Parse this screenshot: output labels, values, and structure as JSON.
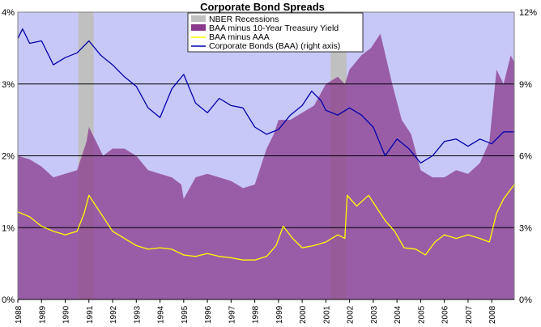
{
  "chart_data": {
    "type": "area",
    "title": "Corporate Bond Spreads",
    "y_left": {
      "ticks": [
        "0%",
        "1%",
        "2%",
        "3%",
        "4%"
      ],
      "range": [
        0,
        4
      ]
    },
    "y_right": {
      "ticks": [
        "0%",
        "3%",
        "6%",
        "9%",
        "12%"
      ],
      "range": [
        0,
        12
      ]
    },
    "x_range": [
      1988,
      2008.95
    ],
    "x_ticks": [
      "1988",
      "1989",
      "1990",
      "1991",
      "1992",
      "1993",
      "1994",
      "1995",
      "1996",
      "1997",
      "1998",
      "1999",
      "2000",
      "2001",
      "2002",
      "2003",
      "2004",
      "2005",
      "2006",
      "2007",
      "2008"
    ],
    "grid": "horizontal",
    "legend_position": "top",
    "colors": {
      "plot_bg": "#c8c8f8",
      "recession": "#c0c0c0",
      "spread_area": "#8a3a8c",
      "baa_aaa": "#ffff00",
      "baa_yield": "#0000aa"
    },
    "legend": [
      "NBER Recessions",
      "BAA minus 10-Year Treasury Yield",
      "BAA minus AAA",
      "Corporate Bonds (BAA) (right axis)"
    ],
    "recessions": [
      [
        1990.55,
        1991.2
      ],
      [
        2001.2,
        2001.87
      ]
    ],
    "series": [
      {
        "name": "BAA minus 10-Year Treasury Yield",
        "axis": "left",
        "x": [
          1988.0,
          1988.5,
          1989.0,
          1989.5,
          1990.0,
          1990.5,
          1990.9,
          1991.0,
          1991.3,
          1991.6,
          1992.0,
          1992.5,
          1993.0,
          1993.5,
          1994.0,
          1994.5,
          1994.9,
          1995.0,
          1995.5,
          1996.0,
          1996.5,
          1997.0,
          1997.5,
          1998.0,
          1998.5,
          1998.8,
          1999.0,
          1999.5,
          2000.0,
          2000.5,
          2001.0,
          2001.5,
          2001.8,
          2002.0,
          2002.5,
          2002.9,
          2003.3,
          2003.8,
          2004.2,
          2004.6,
          2005.0,
          2005.5,
          2006.0,
          2006.5,
          2007.0,
          2007.5,
          2007.9,
          2008.2,
          2008.5,
          2008.8,
          2008.95
        ],
        "y": [
          2.0,
          1.95,
          1.85,
          1.7,
          1.75,
          1.8,
          2.2,
          2.4,
          2.2,
          2.0,
          2.1,
          2.1,
          2.0,
          1.8,
          1.75,
          1.7,
          1.6,
          1.4,
          1.7,
          1.75,
          1.7,
          1.65,
          1.55,
          1.6,
          2.1,
          2.3,
          2.5,
          2.5,
          2.6,
          2.7,
          3.0,
          3.1,
          3.0,
          3.2,
          3.4,
          3.5,
          3.7,
          3.0,
          2.5,
          2.3,
          1.8,
          1.7,
          1.7,
          1.8,
          1.75,
          1.9,
          2.2,
          3.2,
          3.0,
          3.4,
          3.3
        ]
      },
      {
        "name": "BAA minus AAA",
        "axis": "left",
        "x": [
          1988.0,
          1988.5,
          1989.0,
          1989.5,
          1990.0,
          1990.5,
          1990.8,
          1991.0,
          1991.5,
          1992.0,
          1992.5,
          1993.0,
          1993.5,
          1994.0,
          1994.5,
          1995.0,
          1995.5,
          1996.0,
          1996.5,
          1997.0,
          1997.5,
          1998.0,
          1998.5,
          1998.9,
          1999.2,
          1999.6,
          2000.0,
          2000.5,
          2001.0,
          2001.5,
          2001.8,
          2001.9,
          2002.3,
          2002.8,
          2003.1,
          2003.5,
          2003.9,
          2004.3,
          2004.8,
          2005.2,
          2005.6,
          2006.0,
          2006.5,
          2007.0,
          2007.5,
          2007.9,
          2008.2,
          2008.5,
          2008.95
        ],
        "y": [
          1.22,
          1.15,
          1.02,
          0.95,
          0.9,
          0.95,
          1.2,
          1.45,
          1.2,
          0.95,
          0.85,
          0.75,
          0.7,
          0.72,
          0.7,
          0.62,
          0.6,
          0.64,
          0.6,
          0.58,
          0.55,
          0.55,
          0.6,
          0.75,
          1.02,
          0.85,
          0.72,
          0.75,
          0.8,
          0.9,
          0.85,
          1.45,
          1.3,
          1.45,
          1.3,
          1.1,
          0.95,
          0.72,
          0.7,
          0.62,
          0.8,
          0.9,
          0.85,
          0.9,
          0.85,
          0.8,
          1.2,
          1.4,
          1.6
        ]
      },
      {
        "name": "Corporate Bonds (BAA) (right axis)",
        "axis": "right",
        "x": [
          1988.0,
          1988.2,
          1988.5,
          1989.0,
          1989.5,
          1990.0,
          1990.5,
          1991.0,
          1991.5,
          1992.0,
          1992.5,
          1993.0,
          1993.5,
          1994.0,
          1994.5,
          1995.0,
          1995.5,
          1996.0,
          1996.5,
          1997.0,
          1997.5,
          1998.0,
          1998.5,
          1999.0,
          1999.5,
          2000.0,
          2000.4,
          2000.8,
          2001.0,
          2001.5,
          2002.0,
          2002.5,
          2003.0,
          2003.5,
          2004.0,
          2004.5,
          2005.0,
          2005.5,
          2006.0,
          2006.5,
          2007.0,
          2007.5,
          2008.0,
          2008.5,
          2008.95
        ],
        "y": [
          10.9,
          11.3,
          10.7,
          10.8,
          9.8,
          10.1,
          10.3,
          10.8,
          10.2,
          9.8,
          9.3,
          8.9,
          8.0,
          7.6,
          8.8,
          9.4,
          8.2,
          7.8,
          8.4,
          8.1,
          8.0,
          7.2,
          6.9,
          7.1,
          7.7,
          8.1,
          8.7,
          8.3,
          7.9,
          7.7,
          8.0,
          7.7,
          7.2,
          6.0,
          6.7,
          6.3,
          5.7,
          6.0,
          6.6,
          6.7,
          6.4,
          6.7,
          6.5,
          7.0,
          7.0
        ]
      }
    ]
  }
}
